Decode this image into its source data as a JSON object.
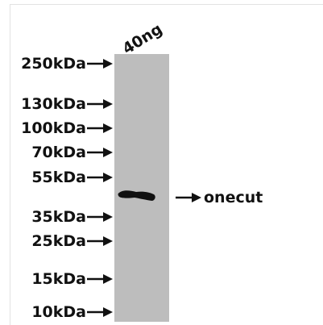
{
  "lane": {
    "label": "40ng"
  },
  "markers": [
    {
      "label": "250kDa"
    },
    {
      "label": "130kDa"
    },
    {
      "label": "100kDa"
    },
    {
      "label": "70kDa"
    },
    {
      "label": "55kDa"
    },
    {
      "label": "35kDa"
    },
    {
      "label": "25kDa"
    },
    {
      "label": "15kDa"
    },
    {
      "label": "10kDa"
    }
  ],
  "target": {
    "label": "onecut"
  }
}
